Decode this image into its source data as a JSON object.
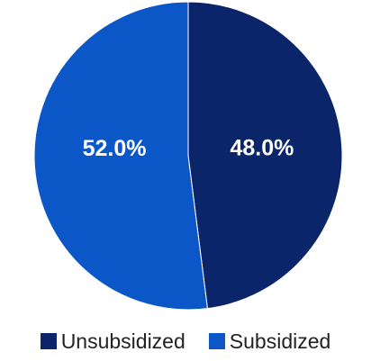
{
  "chart_data": {
    "type": "pie",
    "title": "",
    "slices": [
      {
        "name": "Unsubsidized",
        "value": 48.0,
        "label": "48.0%",
        "color": "#0a2569"
      },
      {
        "name": "Subsidized",
        "value": 52.0,
        "label": "52.0%",
        "color": "#0c57c8"
      }
    ],
    "start_angle": "12 o'clock",
    "direction": "clockwise",
    "legend_position": "bottom"
  },
  "colors": {
    "background": "#ffffff",
    "slice_border": "#ffffff",
    "label_text": "#ffffff"
  }
}
